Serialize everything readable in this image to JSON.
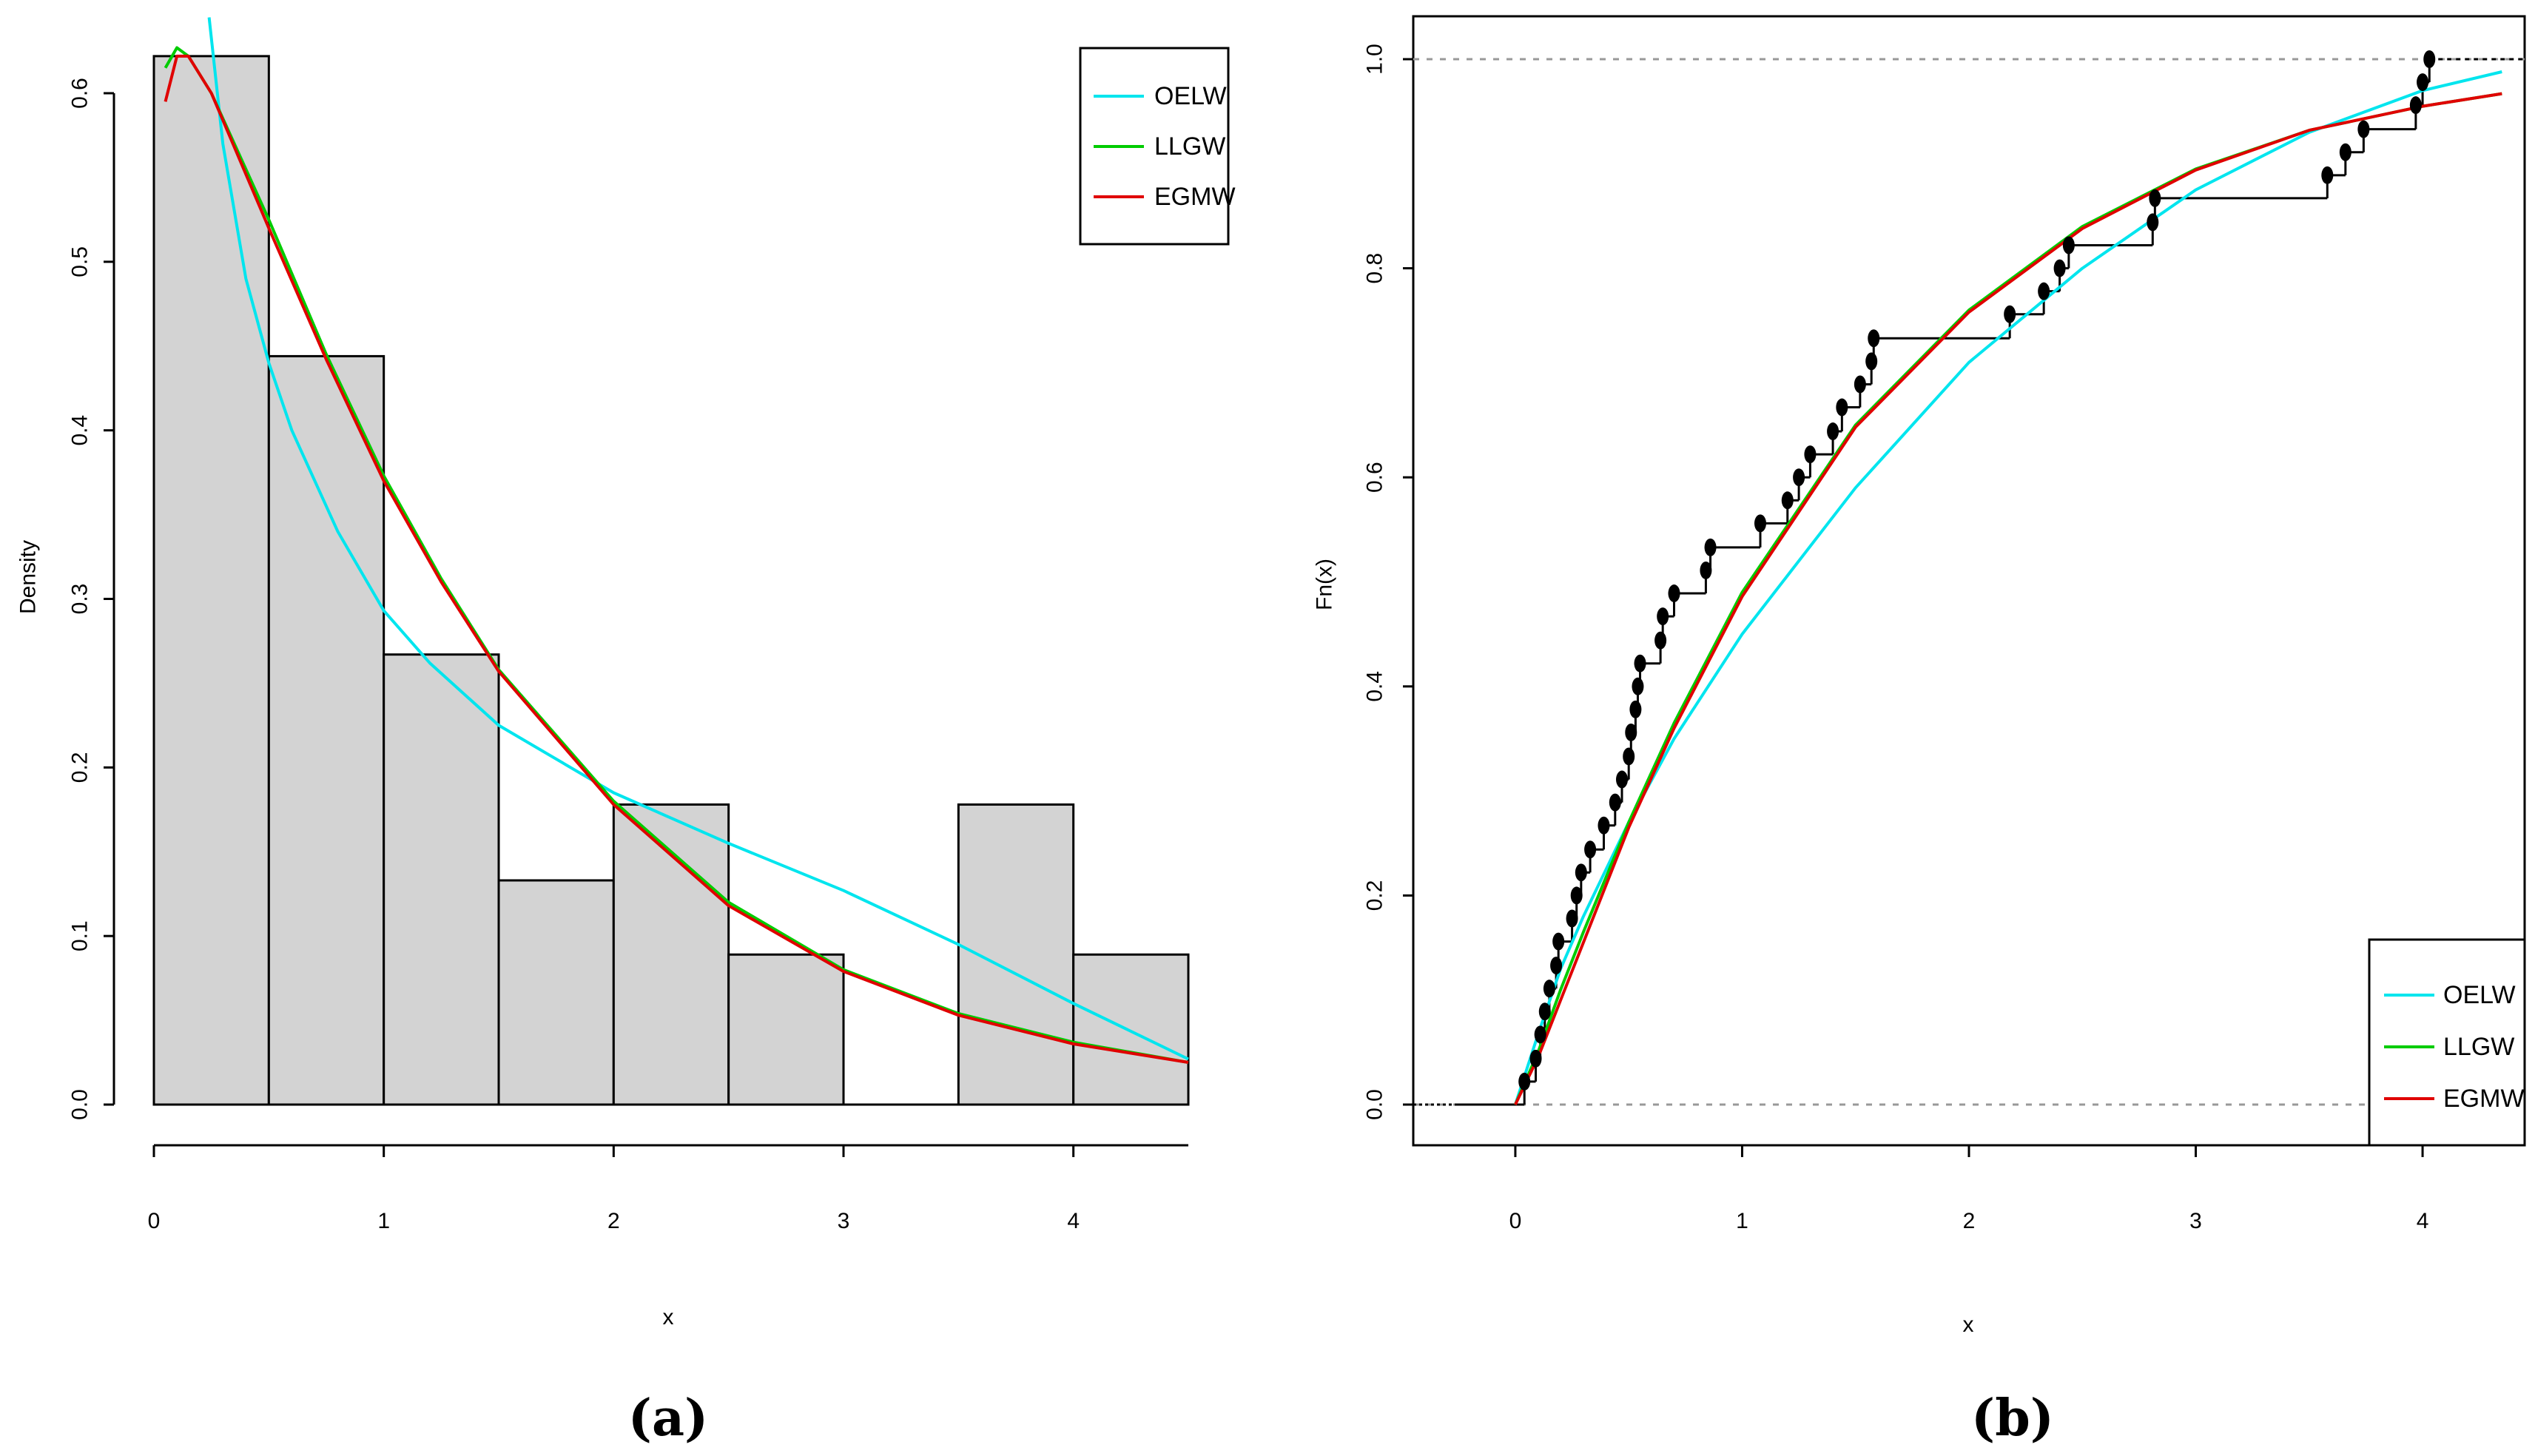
{
  "colors": {
    "OELW": "#00e5ee",
    "LLGW": "#00cc00",
    "EGMW": "#e00000",
    "bar_fill": "#d3d3d3",
    "ref_line": "#999999"
  },
  "chart_data": [
    {
      "id": "a",
      "type": "bar",
      "panel_label": "(a)",
      "title": "",
      "xlabel": "x",
      "ylabel": "Density",
      "xlim": [
        0,
        4.5
      ],
      "ylim": [
        0,
        0.6
      ],
      "xticks": [
        0,
        1,
        2,
        3,
        4
      ],
      "xtick_labels": [
        "0",
        "1",
        "2",
        "3",
        "4"
      ],
      "yticks": [
        0.0,
        0.1,
        0.2,
        0.3,
        0.4,
        0.5,
        0.6
      ],
      "ytick_labels": [
        "0.0",
        "0.1",
        "0.2",
        "0.3",
        "0.4",
        "0.5",
        "0.6"
      ],
      "bins": [
        {
          "x0": 0.0,
          "x1": 0.5,
          "density": 0.622
        },
        {
          "x0": 0.5,
          "x1": 1.0,
          "density": 0.444
        },
        {
          "x0": 1.0,
          "x1": 1.5,
          "density": 0.267
        },
        {
          "x0": 1.5,
          "x1": 2.0,
          "density": 0.133
        },
        {
          "x0": 2.0,
          "x1": 2.5,
          "density": 0.178
        },
        {
          "x0": 2.5,
          "x1": 3.0,
          "density": 0.089
        },
        {
          "x0": 3.0,
          "x1": 3.5,
          "density": 0.0
        },
        {
          "x0": 3.5,
          "x1": 4.0,
          "density": 0.178
        },
        {
          "x0": 4.0,
          "x1": 4.5,
          "density": 0.089
        }
      ],
      "series": [
        {
          "name": "OELW",
          "x": [
            0.24,
            0.3,
            0.4,
            0.5,
            0.6,
            0.8,
            1.0,
            1.2,
            1.5,
            2.0,
            2.5,
            3.0,
            3.5,
            4.0,
            4.5
          ],
          "y": [
            0.645,
            0.57,
            0.49,
            0.44,
            0.4,
            0.34,
            0.293,
            0.262,
            0.225,
            0.185,
            0.155,
            0.127,
            0.095,
            0.06,
            0.027
          ]
        },
        {
          "name": "LLGW",
          "x": [
            0.05,
            0.1,
            0.15,
            0.25,
            0.5,
            0.75,
            1.0,
            1.25,
            1.5,
            2.0,
            2.5,
            3.0,
            3.5,
            4.0,
            4.5
          ],
          "y": [
            0.615,
            0.627,
            0.622,
            0.6,
            0.525,
            0.445,
            0.373,
            0.312,
            0.258,
            0.18,
            0.12,
            0.08,
            0.054,
            0.037,
            0.025
          ]
        },
        {
          "name": "EGMW",
          "x": [
            0.05,
            0.1,
            0.15,
            0.25,
            0.5,
            0.75,
            1.0,
            1.25,
            1.5,
            2.0,
            2.5,
            3.0,
            3.5,
            4.0,
            4.5
          ],
          "y": [
            0.595,
            0.622,
            0.622,
            0.6,
            0.52,
            0.442,
            0.37,
            0.31,
            0.257,
            0.178,
            0.118,
            0.079,
            0.053,
            0.036,
            0.025
          ]
        }
      ],
      "legend": {
        "position": "top-right",
        "entries": [
          "OELW",
          "LLGW",
          "EGMW"
        ]
      }
    },
    {
      "id": "b",
      "type": "line",
      "panel_label": "(b)",
      "title": "",
      "xlabel": "x",
      "ylabel": "Fn(x)",
      "xlim": [
        -0.45,
        4.45
      ],
      "ylim": [
        0,
        1
      ],
      "xticks": [
        0,
        1,
        2,
        3,
        4
      ],
      "xtick_labels": [
        "0",
        "1",
        "2",
        "3",
        "4"
      ],
      "yticks": [
        0.0,
        0.2,
        0.4,
        0.6,
        0.8,
        1.0
      ],
      "ytick_labels": [
        "0.0",
        "0.2",
        "0.4",
        "0.6",
        "0.8",
        "1.0"
      ],
      "ecdf_points": [
        [
          0.04,
          0.022
        ],
        [
          0.09,
          0.044
        ],
        [
          0.11,
          0.067
        ],
        [
          0.13,
          0.089
        ],
        [
          0.15,
          0.111
        ],
        [
          0.18,
          0.133
        ],
        [
          0.19,
          0.156
        ],
        [
          0.25,
          0.178
        ],
        [
          0.27,
          0.2
        ],
        [
          0.29,
          0.222
        ],
        [
          0.33,
          0.244
        ],
        [
          0.39,
          0.267
        ],
        [
          0.44,
          0.289
        ],
        [
          0.47,
          0.311
        ],
        [
          0.5,
          0.333
        ],
        [
          0.51,
          0.356
        ],
        [
          0.53,
          0.378
        ],
        [
          0.54,
          0.4
        ],
        [
          0.55,
          0.422
        ],
        [
          0.64,
          0.444
        ],
        [
          0.65,
          0.467
        ],
        [
          0.7,
          0.489
        ],
        [
          0.84,
          0.511
        ],
        [
          0.86,
          0.533
        ],
        [
          1.08,
          0.556
        ],
        [
          1.2,
          0.578
        ],
        [
          1.25,
          0.6
        ],
        [
          1.3,
          0.622
        ],
        [
          1.4,
          0.644
        ],
        [
          1.44,
          0.667
        ],
        [
          1.52,
          0.689
        ],
        [
          1.57,
          0.711
        ],
        [
          1.58,
          0.733
        ],
        [
          2.18,
          0.756
        ],
        [
          2.33,
          0.778
        ],
        [
          2.4,
          0.8
        ],
        [
          2.44,
          0.822
        ],
        [
          2.81,
          0.844
        ],
        [
          2.82,
          0.867
        ],
        [
          3.58,
          0.889
        ],
        [
          3.66,
          0.911
        ],
        [
          3.74,
          0.933
        ],
        [
          3.97,
          0.956
        ],
        [
          4.0,
          0.978
        ],
        [
          4.03,
          1.0
        ]
      ],
      "series": [
        {
          "name": "OELW",
          "x": [
            0.0,
            0.1,
            0.2,
            0.3,
            0.5,
            0.7,
            1.0,
            1.5,
            2.0,
            2.5,
            3.0,
            3.5,
            4.0,
            4.35
          ],
          "y": [
            0.0,
            0.067,
            0.13,
            0.18,
            0.27,
            0.35,
            0.45,
            0.59,
            0.71,
            0.8,
            0.875,
            0.93,
            0.97,
            0.988
          ]
        },
        {
          "name": "LLGW",
          "x": [
            0.0,
            0.1,
            0.2,
            0.3,
            0.5,
            0.7,
            1.0,
            1.5,
            2.0,
            2.5,
            3.0,
            3.5,
            4.0,
            4.35
          ],
          "y": [
            0.0,
            0.05,
            0.11,
            0.165,
            0.27,
            0.365,
            0.49,
            0.65,
            0.76,
            0.84,
            0.895,
            0.932,
            0.955,
            0.967
          ]
        },
        {
          "name": "EGMW",
          "x": [
            0.0,
            0.1,
            0.2,
            0.3,
            0.5,
            0.7,
            1.0,
            1.5,
            2.0,
            2.5,
            3.0,
            3.5,
            4.0,
            4.35
          ],
          "y": [
            0.0,
            0.045,
            0.1,
            0.155,
            0.265,
            0.36,
            0.486,
            0.648,
            0.758,
            0.838,
            0.894,
            0.932,
            0.955,
            0.967
          ]
        }
      ],
      "legend": {
        "position": "bottom-right",
        "entries": [
          "OELW",
          "LLGW",
          "EGMW"
        ]
      }
    }
  ]
}
